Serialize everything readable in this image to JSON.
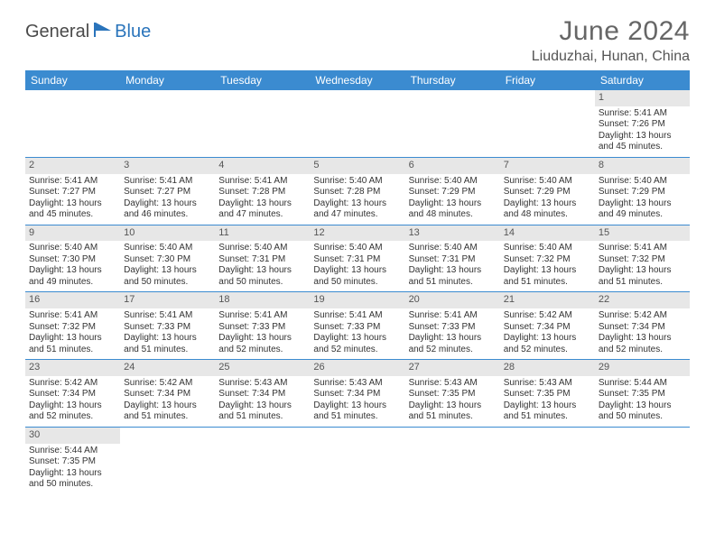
{
  "logo": {
    "text1": "General",
    "text2": "Blue"
  },
  "title": "June 2024",
  "location": "Liuduzhai, Hunan, China",
  "colors": {
    "header_bg": "#3b8bd0",
    "header_text": "#ffffff",
    "daynum_bg": "#e7e7e7",
    "row_divider": "#3b8bd0",
    "logo_blue": "#2a74bb",
    "logo_dark": "#4a4a4a"
  },
  "dayHeaders": [
    "Sunday",
    "Monday",
    "Tuesday",
    "Wednesday",
    "Thursday",
    "Friday",
    "Saturday"
  ],
  "weeks": [
    [
      null,
      null,
      null,
      null,
      null,
      null,
      {
        "n": "1",
        "sr": "Sunrise: 5:41 AM",
        "ss": "Sunset: 7:26 PM",
        "d1": "Daylight: 13 hours",
        "d2": "and 45 minutes."
      }
    ],
    [
      {
        "n": "2",
        "sr": "Sunrise: 5:41 AM",
        "ss": "Sunset: 7:27 PM",
        "d1": "Daylight: 13 hours",
        "d2": "and 45 minutes."
      },
      {
        "n": "3",
        "sr": "Sunrise: 5:41 AM",
        "ss": "Sunset: 7:27 PM",
        "d1": "Daylight: 13 hours",
        "d2": "and 46 minutes."
      },
      {
        "n": "4",
        "sr": "Sunrise: 5:41 AM",
        "ss": "Sunset: 7:28 PM",
        "d1": "Daylight: 13 hours",
        "d2": "and 47 minutes."
      },
      {
        "n": "5",
        "sr": "Sunrise: 5:40 AM",
        "ss": "Sunset: 7:28 PM",
        "d1": "Daylight: 13 hours",
        "d2": "and 47 minutes."
      },
      {
        "n": "6",
        "sr": "Sunrise: 5:40 AM",
        "ss": "Sunset: 7:29 PM",
        "d1": "Daylight: 13 hours",
        "d2": "and 48 minutes."
      },
      {
        "n": "7",
        "sr": "Sunrise: 5:40 AM",
        "ss": "Sunset: 7:29 PM",
        "d1": "Daylight: 13 hours",
        "d2": "and 48 minutes."
      },
      {
        "n": "8",
        "sr": "Sunrise: 5:40 AM",
        "ss": "Sunset: 7:29 PM",
        "d1": "Daylight: 13 hours",
        "d2": "and 49 minutes."
      }
    ],
    [
      {
        "n": "9",
        "sr": "Sunrise: 5:40 AM",
        "ss": "Sunset: 7:30 PM",
        "d1": "Daylight: 13 hours",
        "d2": "and 49 minutes."
      },
      {
        "n": "10",
        "sr": "Sunrise: 5:40 AM",
        "ss": "Sunset: 7:30 PM",
        "d1": "Daylight: 13 hours",
        "d2": "and 50 minutes."
      },
      {
        "n": "11",
        "sr": "Sunrise: 5:40 AM",
        "ss": "Sunset: 7:31 PM",
        "d1": "Daylight: 13 hours",
        "d2": "and 50 minutes."
      },
      {
        "n": "12",
        "sr": "Sunrise: 5:40 AM",
        "ss": "Sunset: 7:31 PM",
        "d1": "Daylight: 13 hours",
        "d2": "and 50 minutes."
      },
      {
        "n": "13",
        "sr": "Sunrise: 5:40 AM",
        "ss": "Sunset: 7:31 PM",
        "d1": "Daylight: 13 hours",
        "d2": "and 51 minutes."
      },
      {
        "n": "14",
        "sr": "Sunrise: 5:40 AM",
        "ss": "Sunset: 7:32 PM",
        "d1": "Daylight: 13 hours",
        "d2": "and 51 minutes."
      },
      {
        "n": "15",
        "sr": "Sunrise: 5:41 AM",
        "ss": "Sunset: 7:32 PM",
        "d1": "Daylight: 13 hours",
        "d2": "and 51 minutes."
      }
    ],
    [
      {
        "n": "16",
        "sr": "Sunrise: 5:41 AM",
        "ss": "Sunset: 7:32 PM",
        "d1": "Daylight: 13 hours",
        "d2": "and 51 minutes."
      },
      {
        "n": "17",
        "sr": "Sunrise: 5:41 AM",
        "ss": "Sunset: 7:33 PM",
        "d1": "Daylight: 13 hours",
        "d2": "and 51 minutes."
      },
      {
        "n": "18",
        "sr": "Sunrise: 5:41 AM",
        "ss": "Sunset: 7:33 PM",
        "d1": "Daylight: 13 hours",
        "d2": "and 52 minutes."
      },
      {
        "n": "19",
        "sr": "Sunrise: 5:41 AM",
        "ss": "Sunset: 7:33 PM",
        "d1": "Daylight: 13 hours",
        "d2": "and 52 minutes."
      },
      {
        "n": "20",
        "sr": "Sunrise: 5:41 AM",
        "ss": "Sunset: 7:33 PM",
        "d1": "Daylight: 13 hours",
        "d2": "and 52 minutes."
      },
      {
        "n": "21",
        "sr": "Sunrise: 5:42 AM",
        "ss": "Sunset: 7:34 PM",
        "d1": "Daylight: 13 hours",
        "d2": "and 52 minutes."
      },
      {
        "n": "22",
        "sr": "Sunrise: 5:42 AM",
        "ss": "Sunset: 7:34 PM",
        "d1": "Daylight: 13 hours",
        "d2": "and 52 minutes."
      }
    ],
    [
      {
        "n": "23",
        "sr": "Sunrise: 5:42 AM",
        "ss": "Sunset: 7:34 PM",
        "d1": "Daylight: 13 hours",
        "d2": "and 52 minutes."
      },
      {
        "n": "24",
        "sr": "Sunrise: 5:42 AM",
        "ss": "Sunset: 7:34 PM",
        "d1": "Daylight: 13 hours",
        "d2": "and 51 minutes."
      },
      {
        "n": "25",
        "sr": "Sunrise: 5:43 AM",
        "ss": "Sunset: 7:34 PM",
        "d1": "Daylight: 13 hours",
        "d2": "and 51 minutes."
      },
      {
        "n": "26",
        "sr": "Sunrise: 5:43 AM",
        "ss": "Sunset: 7:34 PM",
        "d1": "Daylight: 13 hours",
        "d2": "and 51 minutes."
      },
      {
        "n": "27",
        "sr": "Sunrise: 5:43 AM",
        "ss": "Sunset: 7:35 PM",
        "d1": "Daylight: 13 hours",
        "d2": "and 51 minutes."
      },
      {
        "n": "28",
        "sr": "Sunrise: 5:43 AM",
        "ss": "Sunset: 7:35 PM",
        "d1": "Daylight: 13 hours",
        "d2": "and 51 minutes."
      },
      {
        "n": "29",
        "sr": "Sunrise: 5:44 AM",
        "ss": "Sunset: 7:35 PM",
        "d1": "Daylight: 13 hours",
        "d2": "and 50 minutes."
      }
    ],
    [
      {
        "n": "30",
        "sr": "Sunrise: 5:44 AM",
        "ss": "Sunset: 7:35 PM",
        "d1": "Daylight: 13 hours",
        "d2": "and 50 minutes."
      },
      null,
      null,
      null,
      null,
      null,
      null
    ]
  ]
}
